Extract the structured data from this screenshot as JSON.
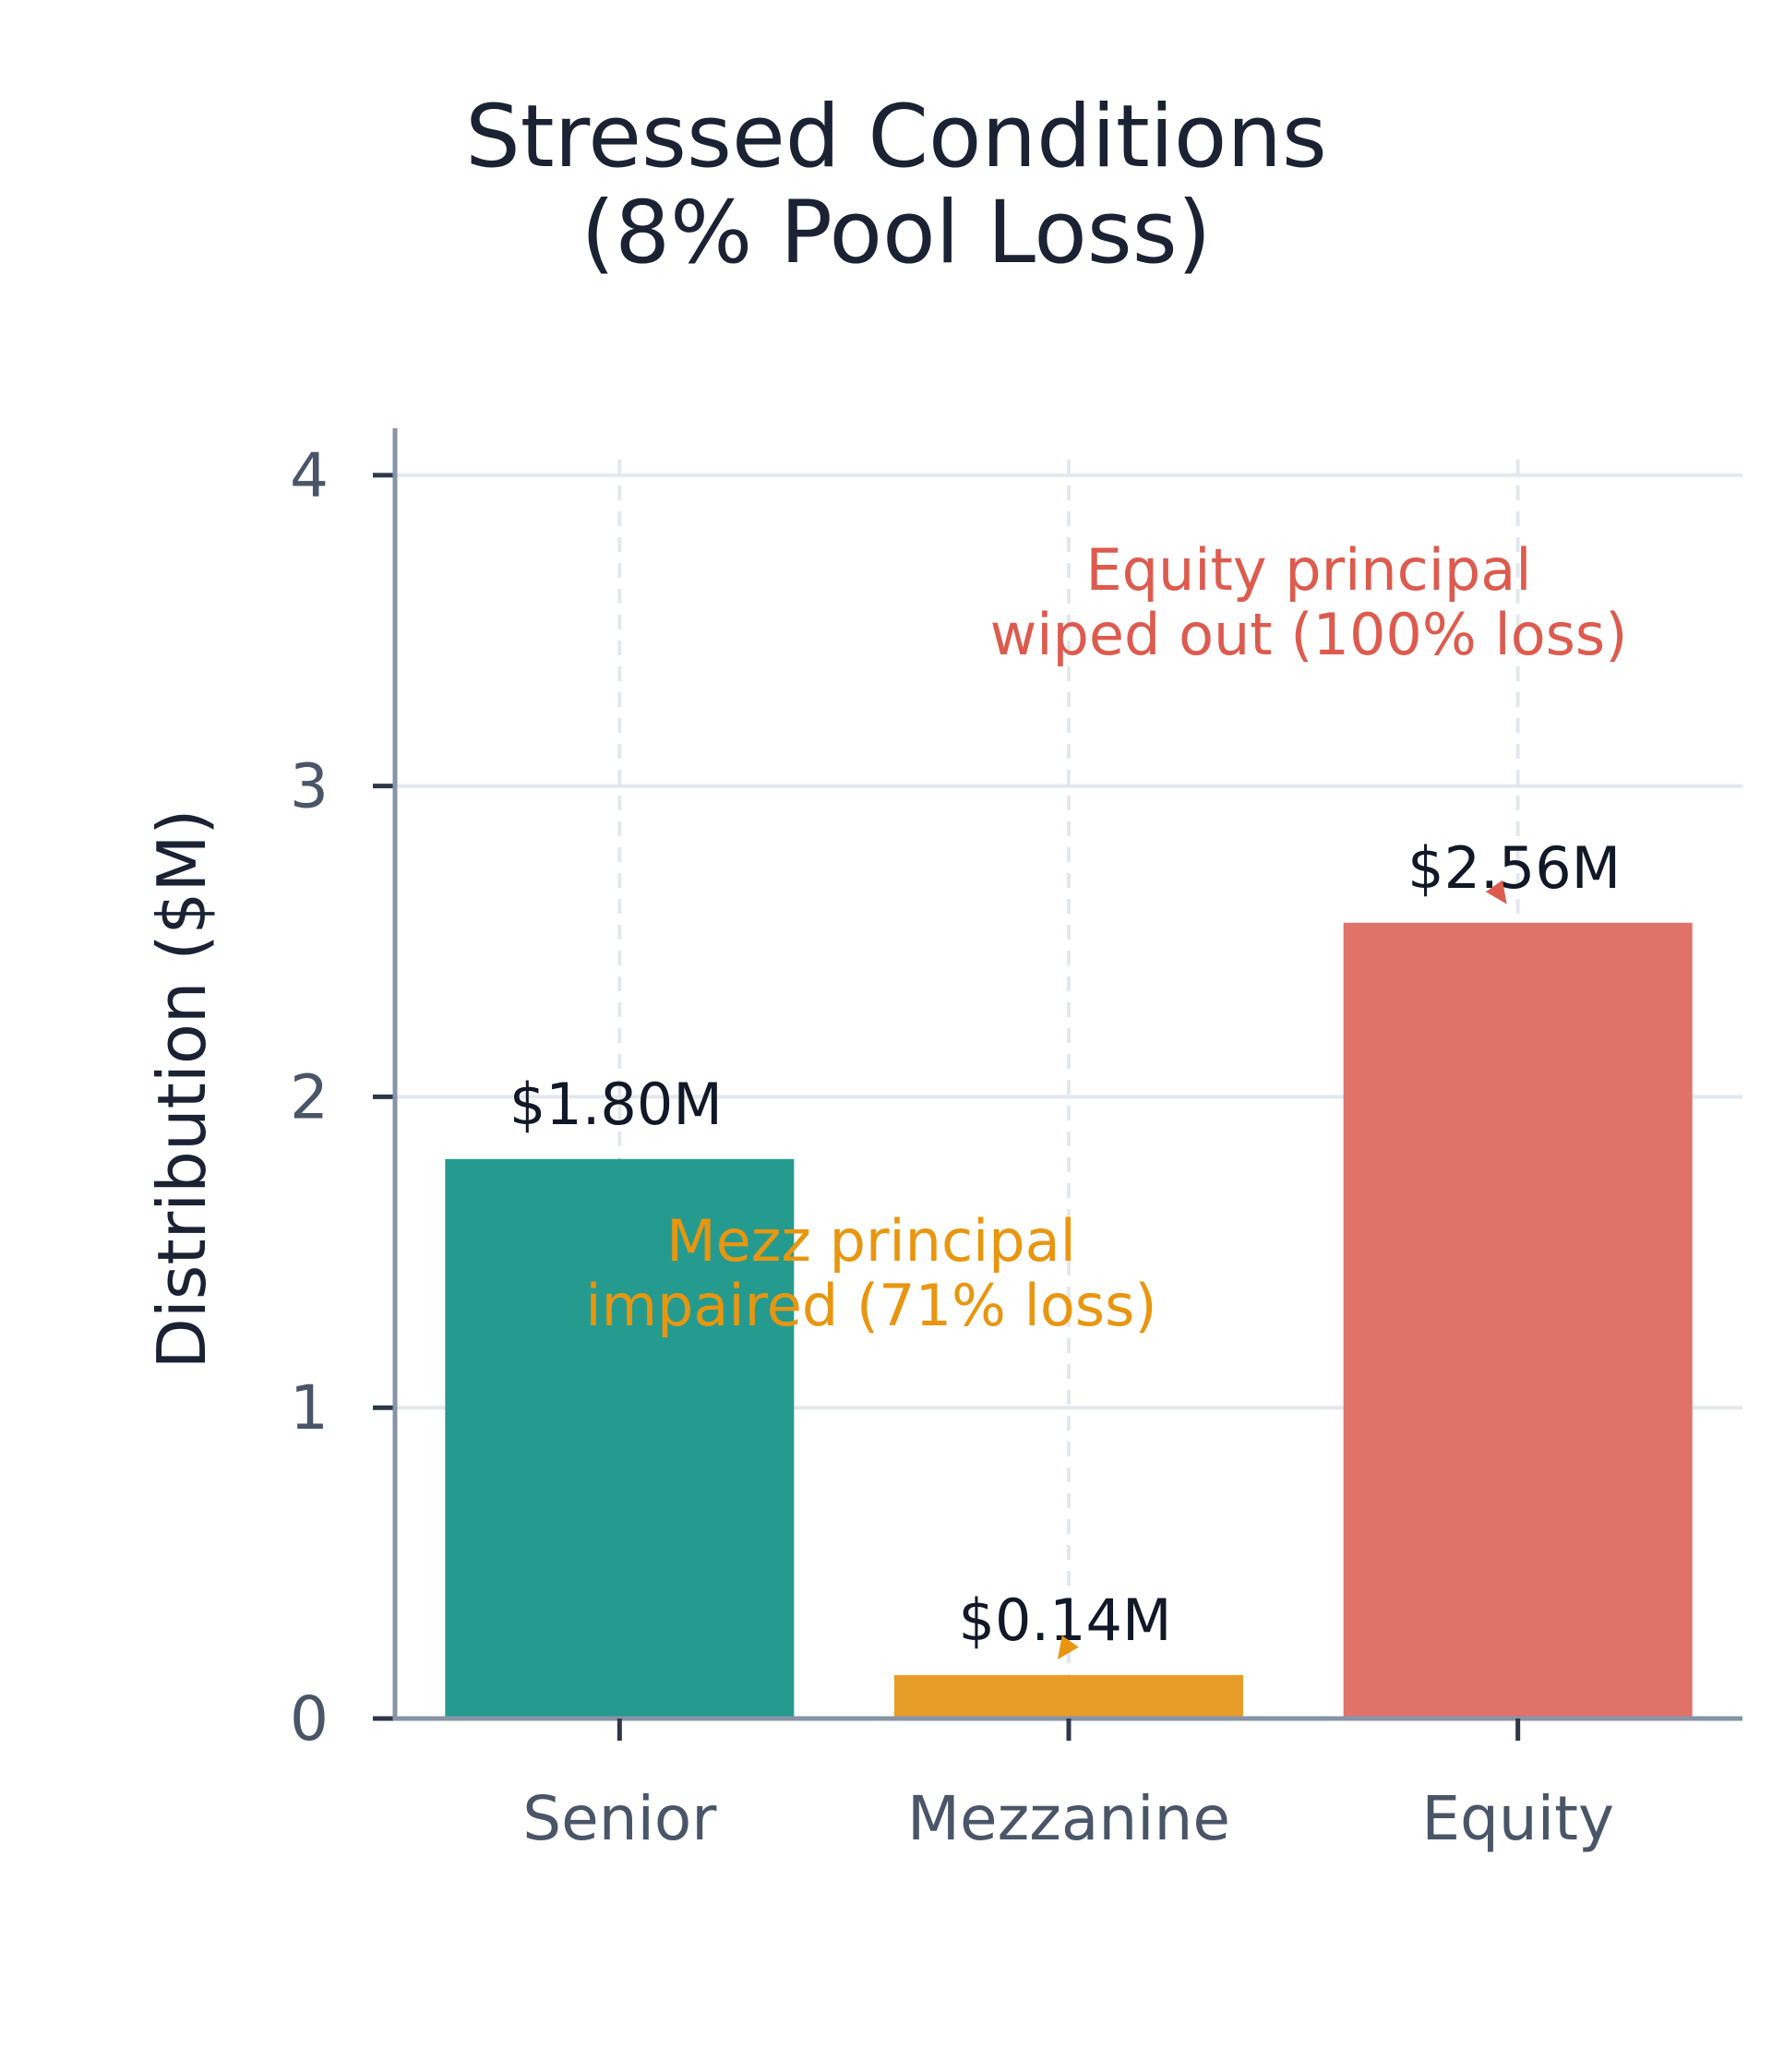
{
  "chart_data": {
    "type": "bar",
    "title": "Stressed Conditions\n(8% Pool Loss)",
    "xlabel": "",
    "ylabel": "Distribution ($M)",
    "categories": [
      "Senior",
      "Mezzanine",
      "Equity"
    ],
    "values": [
      1.8,
      0.14,
      2.56
    ],
    "value_labels": [
      "$1.80M",
      "$0.14M",
      "$2.56M"
    ],
    "colors": [
      "#259b8f",
      "#e89c28",
      "#e07269"
    ],
    "ylim": [
      0,
      4.05
    ],
    "yticks": [
      0,
      1,
      2,
      3,
      4
    ],
    "grid": true,
    "annotations": [
      {
        "text": "Mezz principal\nimpaired (71% loss)",
        "color": "#e8960f",
        "target_category": "Mezzanine",
        "target_value": 0.19,
        "text_value": 1.58
      },
      {
        "text": "Equity principal\nwiped out (100% loss)",
        "color": "#dd5b4e",
        "target_category": "Equity",
        "target_value": 2.62,
        "text_value": 3.75
      }
    ]
  }
}
